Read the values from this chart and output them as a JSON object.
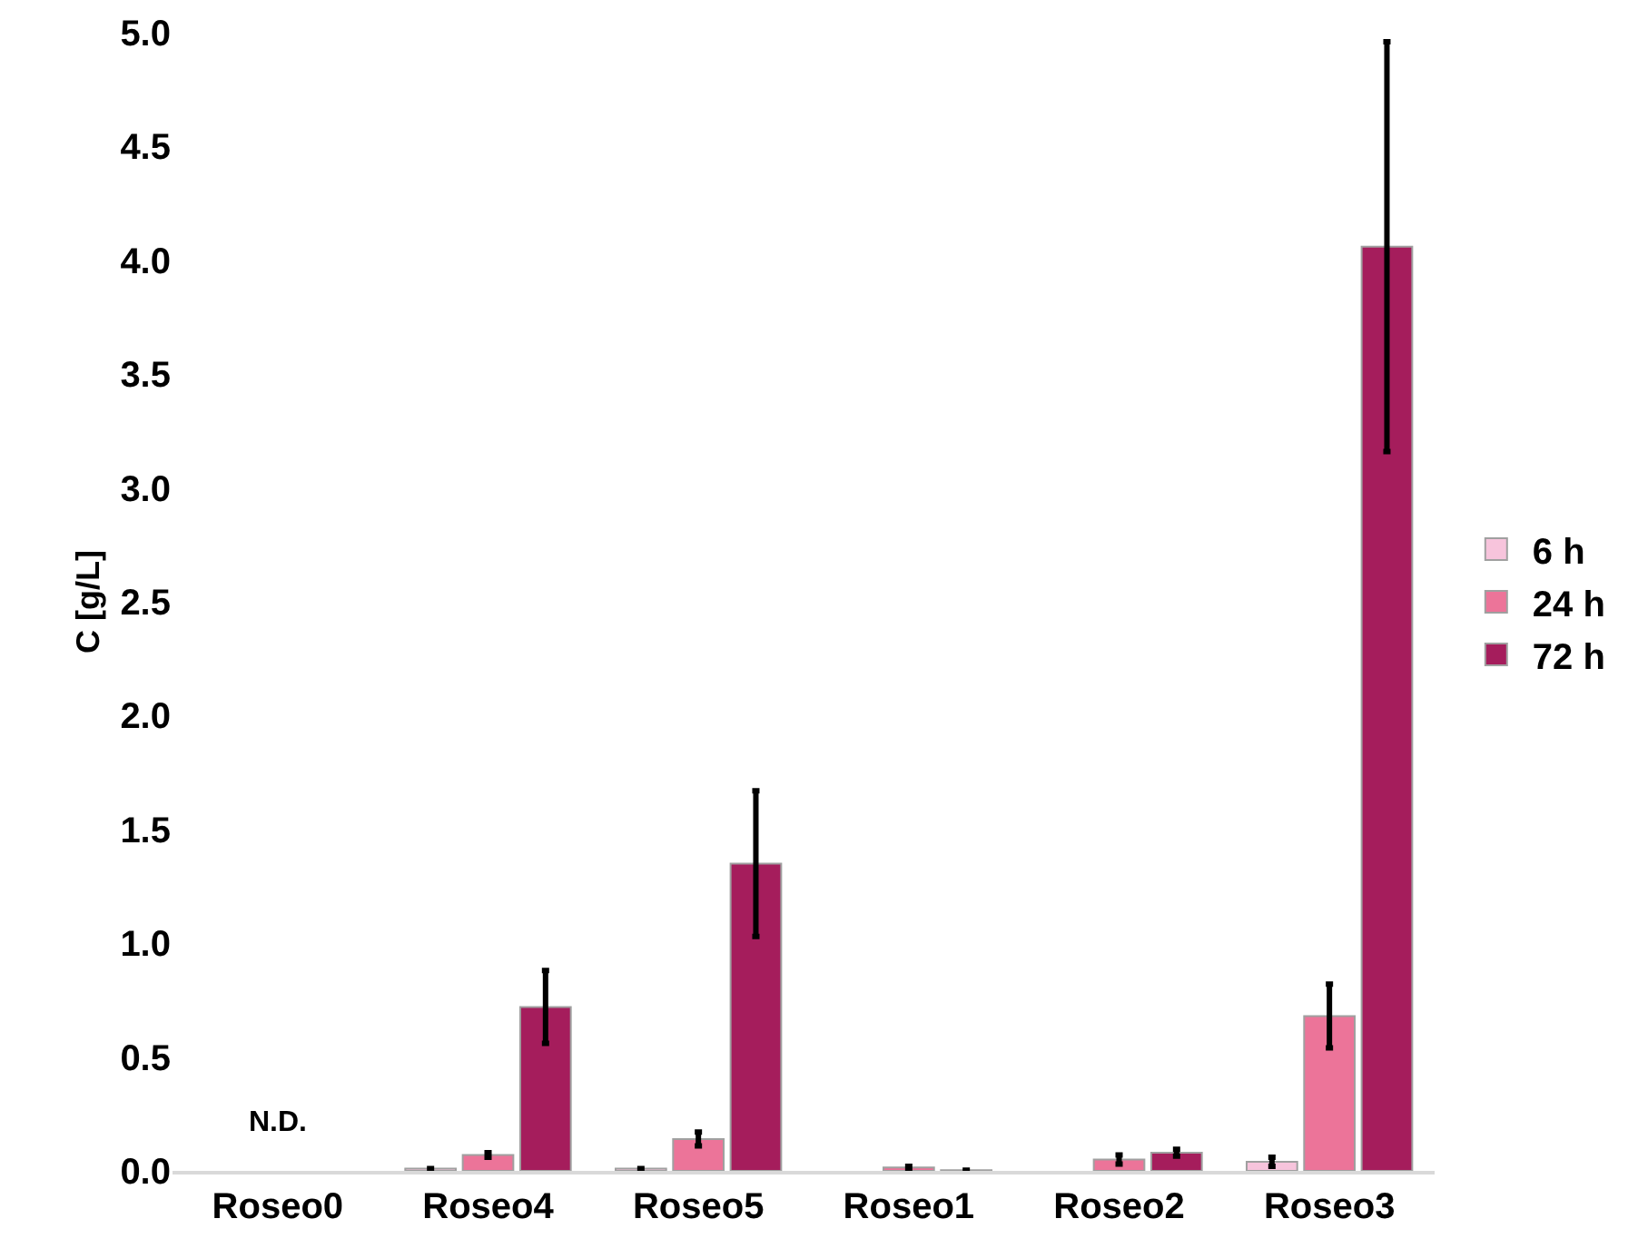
{
  "chart_data": {
    "type": "bar",
    "ylabel": "C [g/L]",
    "categories": [
      "Roseo0",
      "Roseo4",
      "Roseo5",
      "Roseo1",
      "Roseo2",
      "Roseo3"
    ],
    "series": [
      {
        "name": "6 h",
        "color": "#f7c4dc",
        "values": [
          null,
          0.01,
          0.01,
          null,
          null,
          0.04
        ],
        "errors": [
          null,
          null,
          null,
          null,
          null,
          0.02
        ]
      },
      {
        "name": "24 h",
        "color": "#ec7499",
        "values": [
          null,
          0.07,
          0.14,
          0.015,
          0.05,
          0.68
        ],
        "errors": [
          null,
          0.01,
          0.03,
          0.005,
          0.02,
          0.14
        ]
      },
      {
        "name": "72 h",
        "color": "#a51d5c",
        "values": [
          null,
          0.72,
          1.35,
          0.003,
          0.08,
          4.06
        ],
        "errors": [
          null,
          0.16,
          0.32,
          null,
          0.015,
          0.9
        ]
      }
    ],
    "ylim": [
      0,
      5
    ],
    "yticks": [
      {
        "value": 0,
        "label": "0.0"
      },
      {
        "value": 0.5,
        "label": "0.5"
      },
      {
        "value": 1,
        "label": "1.0"
      },
      {
        "value": 1.5,
        "label": "1.5"
      },
      {
        "value": 2,
        "label": "2.0"
      },
      {
        "value": 2.5,
        "label": "2.5"
      },
      {
        "value": 3,
        "label": "3.0"
      },
      {
        "value": 3.5,
        "label": "3.5"
      },
      {
        "value": 4,
        "label": "4.0"
      },
      {
        "value": 4.5,
        "label": "4.5"
      },
      {
        "value": 5,
        "label": "5.0"
      }
    ],
    "grid": false,
    "legend": "right",
    "annotations": [
      "N.D."
    ]
  }
}
